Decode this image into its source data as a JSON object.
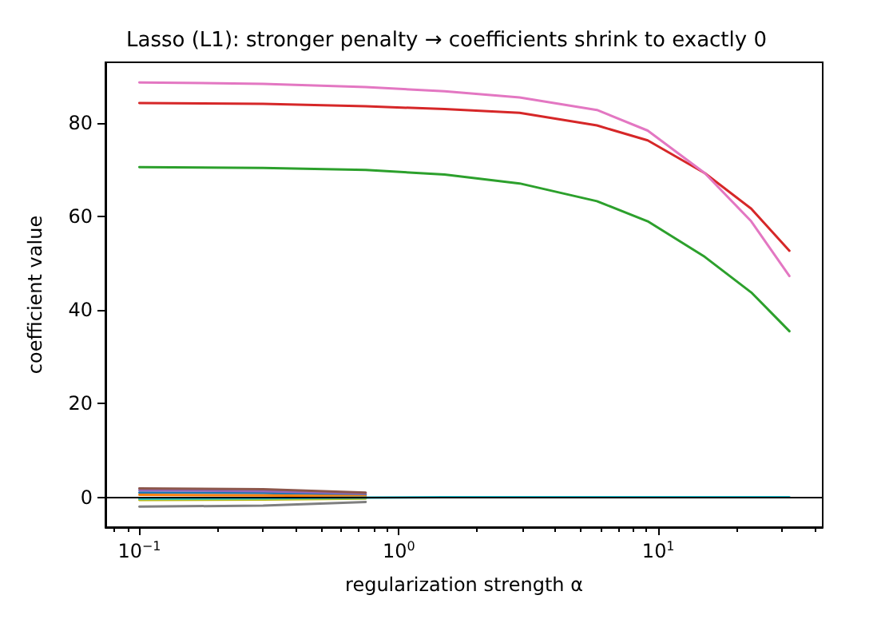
{
  "chart_data": {
    "type": "line",
    "title": "Lasso (L1): stronger penalty → coefficients shrink to exactly 0",
    "xlabel": "regularization strength α",
    "ylabel": "coefficient value",
    "log": "x",
    "xlim": [
      0.074,
      43
    ],
    "ylim": [
      -6.4,
      93
    ],
    "xticks": [
      {
        "value": 0.1,
        "label": "10$^{−1}$"
      },
      {
        "value": 1,
        "label": "10$^{0}$"
      },
      {
        "value": 10,
        "label": "10$^{1}$"
      }
    ],
    "yticks": [
      0,
      20,
      40,
      60,
      80
    ],
    "x": [
      0.1,
      0.3,
      0.745,
      1.5,
      2.92,
      5.8,
      9.1,
      15.1,
      22.8,
      32
    ],
    "series": [
      {
        "color": "#1f77b4",
        "values": [
          1.0,
          0.9,
          0.5,
          null,
          null,
          null,
          null,
          null,
          null,
          null
        ]
      },
      {
        "color": "#ff7f0e",
        "values": [
          0.5,
          0.4,
          0.2,
          null,
          null,
          null,
          null,
          null,
          null,
          null
        ]
      },
      {
        "color": "#2ca02c",
        "values": [
          70.6,
          70.4,
          70.0,
          69.0,
          67.1,
          63.3,
          59.0,
          51.4,
          43.8,
          35.5
        ]
      },
      {
        "color": "#d62728",
        "values": [
          84.3,
          84.1,
          83.6,
          83.0,
          82.2,
          79.5,
          76.3,
          69.3,
          61.7,
          52.7
        ]
      },
      {
        "color": "#9467bd",
        "values": [
          1.5,
          1.3,
          0.8,
          null,
          null,
          null,
          null,
          null,
          null,
          null
        ]
      },
      {
        "color": "#8c564b",
        "values": [
          1.9,
          1.7,
          1.0,
          null,
          null,
          null,
          null,
          null,
          null,
          null
        ]
      },
      {
        "color": "#e377c2",
        "values": [
          88.7,
          88.4,
          87.7,
          86.8,
          85.5,
          82.8,
          78.4,
          69.3,
          59.0,
          47.3
        ]
      },
      {
        "color": "#7f7f7f",
        "values": [
          -2.0,
          -1.8,
          -1.0,
          null,
          null,
          null,
          null,
          null,
          null,
          null
        ]
      },
      {
        "color": "#bcbd22",
        "values": [
          -0.6,
          -0.5,
          -0.3,
          null,
          null,
          null,
          null,
          null,
          null,
          null
        ]
      },
      {
        "color": "#17becf",
        "values": [
          -0.3,
          -0.2,
          -0.1,
          0,
          0,
          0,
          0,
          0,
          0,
          0
        ]
      }
    ],
    "ref_lines": [
      {
        "axis": "y",
        "value": 0,
        "color": "#000000"
      }
    ],
    "grid": false,
    "marker": "none",
    "line_style": "solid"
  }
}
